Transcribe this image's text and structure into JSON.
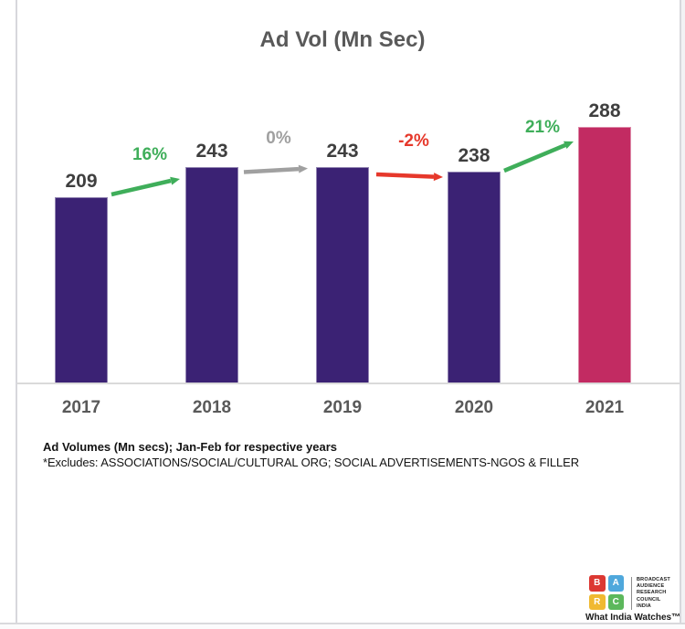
{
  "chart_data": {
    "type": "bar",
    "title": "Ad Vol (Mn Sec)",
    "categories": [
      "2017",
      "2018",
      "2019",
      "2020",
      "2021"
    ],
    "values": [
      209,
      243,
      243,
      238,
      288
    ],
    "bar_colors": [
      "#3b2274",
      "#3b2274",
      "#3b2274",
      "#3b2274",
      "#c22b62"
    ],
    "changes": [
      {
        "label": "16%",
        "color": "#3fae5a",
        "direction": "up"
      },
      {
        "label": "0%",
        "color": "#a0a0a0",
        "direction": "flat"
      },
      {
        "label": "-2%",
        "color": "#e6382b",
        "direction": "down"
      },
      {
        "label": "21%",
        "color": "#3fae5a",
        "direction": "up"
      }
    ],
    "ylabel": "",
    "xlabel": "",
    "ylim": [
      0,
      295
    ],
    "grid": false,
    "value_labels": true,
    "legend": "none"
  },
  "footnote": {
    "line1": "Ad Volumes (Mn secs); Jan-Feb for respective years",
    "line2": "*Excludes: ASSOCIATIONS/SOCIAL/CULTURAL ORG; SOCIAL ADVERTISEMENTS-NGOS & FILLER"
  },
  "logo": {
    "squares": [
      {
        "letter": "B",
        "color": "#dc3832"
      },
      {
        "letter": "A",
        "color": "#4fa8dc"
      },
      {
        "letter": "R",
        "color": "#f0b931"
      },
      {
        "letter": "C",
        "color": "#5cb85c"
      }
    ],
    "org_lines": [
      "BROADCAST",
      "AUDIENCE",
      "RESEARCH",
      "COUNCIL",
      "INDIA"
    ],
    "tagline": "What India Watches™"
  }
}
